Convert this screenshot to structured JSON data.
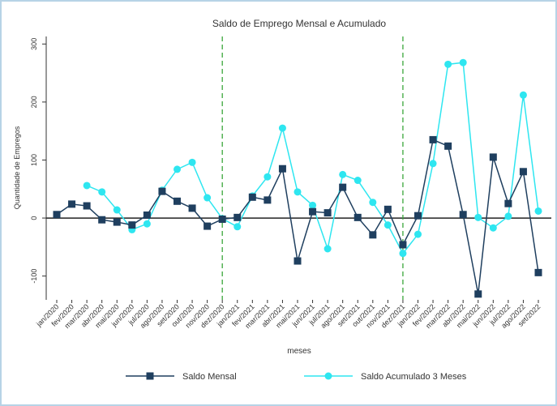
{
  "chart_data": {
    "type": "line",
    "title": "Saldo de Emprego Mensal e Acumulado",
    "xlabel": "meses",
    "ylabel": "Quantidade de Empregos",
    "categories": [
      "jan/2020",
      "fev/2020",
      "mar/2020",
      "abr/2020",
      "mai/2020",
      "jun/2020",
      "jul/2020",
      "ago/2020",
      "set/2020",
      "out/2020",
      "nov/2020",
      "dez/2020",
      "jan/2021",
      "fev/2021",
      "mar/2021",
      "abr/2021",
      "mai/2021",
      "jun/2021",
      "jul/2021",
      "ago/2021",
      "set/2021",
      "out/2021",
      "nov/2021",
      "dez/2021",
      "jan/2022",
      "fev/2022",
      "mar/2022",
      "abr/2022",
      "mai/2022",
      "jun/2022",
      "jul/2022",
      "ago/2022",
      "set/2022"
    ],
    "series": [
      {
        "name": "Saldo Mensal",
        "color": "#1f3f5f",
        "marker": "square",
        "values": [
          6,
          24,
          21,
          -3,
          -7,
          -12,
          5,
          46,
          29,
          17,
          -14,
          -2,
          1,
          36,
          31,
          85,
          -74,
          11,
          9,
          53,
          1,
          -29,
          15,
          -46,
          4,
          135,
          124,
          6,
          -131,
          105,
          25,
          80,
          -94
        ]
      },
      {
        "name": "Saldo Acumulado 3 Meses",
        "color": "#2ee6f0",
        "marker": "circle",
        "values": [
          null,
          null,
          56,
          45,
          14,
          -20,
          -10,
          48,
          84,
          96,
          35,
          -1,
          -15,
          38,
          71,
          155,
          45,
          22,
          -53,
          75,
          65,
          27,
          -12,
          -61,
          -28,
          94,
          265,
          268,
          1,
          -17,
          3,
          212,
          12
        ]
      }
    ],
    "ylim": [
      -141,
      313
    ],
    "yticks": [
      -100,
      0,
      100,
      200,
      300
    ],
    "xlines": [
      "dez/2020",
      "dez/2021"
    ],
    "xline_color": "#3aa63a"
  }
}
